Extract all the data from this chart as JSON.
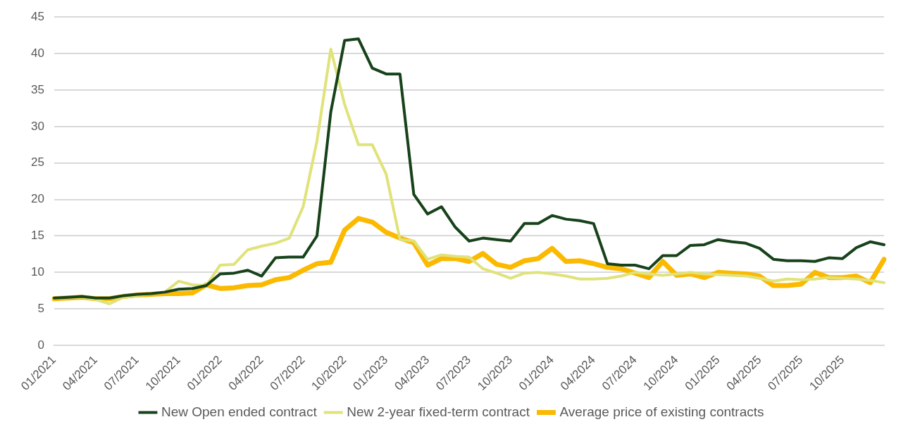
{
  "chart_data": {
    "type": "line",
    "categories": [
      "01/2021",
      null,
      null,
      "04/2021",
      null,
      null,
      "07/2021",
      null,
      null,
      "10/2021",
      null,
      null,
      "01/2022",
      null,
      null,
      "04/2022",
      null,
      null,
      "07/2022",
      null,
      null,
      "10/2022",
      null,
      null,
      "01/2023",
      null,
      null,
      "04/2023",
      null,
      null,
      "07/2023",
      null,
      null,
      "10/2023",
      null,
      null,
      "01/2024",
      null,
      null,
      "04/2024",
      null,
      null,
      "07/2024",
      null,
      null,
      "10/2024",
      null,
      null,
      "01/2025",
      null,
      null,
      "04/2025",
      null,
      null,
      "07/2025",
      null,
      null,
      "10/2025",
      null,
      null,
      null
    ],
    "series": [
      {
        "name": "New Open ended contract",
        "color": "#17421a",
        "values": [
          6.5,
          6.6,
          6.7,
          6.5,
          6.5,
          6.8,
          7,
          7.1,
          7.3,
          7.7,
          7.8,
          8.2,
          9.8,
          9.9,
          10.3,
          9.5,
          12,
          12.1,
          12.1,
          15,
          32,
          41.8,
          42,
          38,
          37.2,
          37.2,
          20.7,
          18,
          19,
          16.2,
          14.3,
          14.7,
          14.5,
          14.3,
          16.7,
          16.7,
          17.8,
          17.3,
          17.1,
          16.7,
          11.2,
          11,
          11,
          10.5,
          12.3,
          12.3,
          13.7,
          13.8,
          14.5,
          14.2,
          14,
          13.3,
          11.8,
          11.6,
          11.6,
          11.5,
          12,
          11.9,
          13.4,
          14.2,
          13.8
        ]
      },
      {
        "name": "New 2-year fixed-term contract",
        "color": "#e0e27a",
        "values": [
          6.5,
          6.6,
          6.6,
          6.3,
          5.7,
          6.6,
          6.8,
          7.1,
          7.3,
          8.8,
          8.3,
          8.2,
          11,
          11.1,
          13.1,
          13.6,
          14,
          14.7,
          19,
          28,
          40.6,
          33,
          27.5,
          27.5,
          23.5,
          14.5,
          14.3,
          11.8,
          12.4,
          12.2,
          12.1,
          10.5,
          9.9,
          9.2,
          9.9,
          10,
          9.8,
          9.5,
          9.1,
          9.1,
          9.2,
          9.5,
          10,
          9.8,
          9.6,
          9.8,
          10,
          9.8,
          9.7,
          9.6,
          9.5,
          9.2,
          8.8,
          9.1,
          9,
          9.1,
          9.3,
          9.2,
          9.1,
          8.9,
          8.6
        ]
      },
      {
        "name": "Average price of existing contracts",
        "color": "#fbb900",
        "values": [
          6.4,
          6.5,
          6.6,
          6.4,
          6.4,
          6.7,
          6.9,
          7,
          7.1,
          7.1,
          7.2,
          8.3,
          7.8,
          7.9,
          8.2,
          8.3,
          9,
          9.3,
          10.3,
          11.2,
          11.4,
          15.8,
          17.4,
          16.9,
          15.5,
          14.7,
          14.1,
          11,
          11.9,
          11.9,
          11.5,
          12.6,
          11.1,
          10.7,
          11.6,
          11.9,
          13.3,
          11.5,
          11.6,
          11.2,
          10.7,
          10.5,
          9.9,
          9.3,
          11.5,
          9.6,
          9.8,
          9.3,
          10,
          9.9,
          9.8,
          9.5,
          8.2,
          8.2,
          8.4,
          10,
          9.3,
          9.3,
          9.5,
          8.6,
          11.8
        ]
      }
    ],
    "ylim": [
      0,
      45
    ],
    "yticks": [
      0,
      5,
      10,
      15,
      20,
      25,
      30,
      35,
      40,
      45
    ],
    "grid": "y",
    "legend": "bottom",
    "marker": "none",
    "line_style": "solid"
  }
}
